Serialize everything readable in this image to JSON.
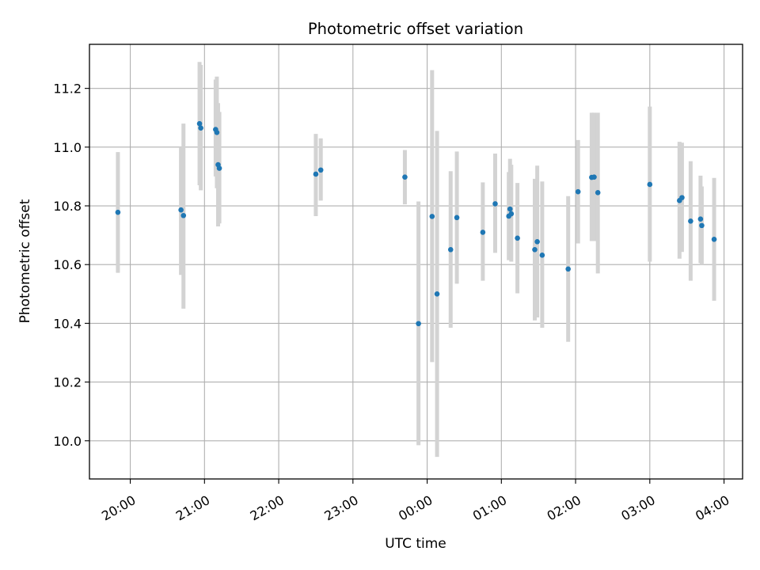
{
  "chart_data": {
    "type": "scatter",
    "title": "Photometric offset variation",
    "xlabel": "UTC time",
    "ylabel": "Photometric offset",
    "x_ticks": [
      "20:00",
      "21:00",
      "22:00",
      "23:00",
      "00:00",
      "01:00",
      "02:00",
      "03:00",
      "04:00"
    ],
    "y_ticks": [
      "10.0",
      "10.2",
      "10.4",
      "10.6",
      "10.8",
      "11.0",
      "11.2"
    ],
    "xlim": [
      "19:27",
      "04:15"
    ],
    "ylim": [
      9.87,
      11.35
    ],
    "grid": true,
    "marker_color": "#1f77b4",
    "errorbar_color": "#d3d3d3",
    "points": [
      {
        "t": "19:50",
        "y": 10.778,
        "lo": 10.572,
        "hi": 10.983
      },
      {
        "t": "20:41",
        "y": 10.786,
        "lo": 10.565,
        "hi": 11.0
      },
      {
        "t": "20:43",
        "y": 10.767,
        "lo": 10.45,
        "hi": 11.08
      },
      {
        "t": "20:56",
        "y": 11.08,
        "lo": 10.87,
        "hi": 11.29
      },
      {
        "t": "20:57",
        "y": 11.065,
        "lo": 10.853,
        "hi": 11.28
      },
      {
        "t": "21:09",
        "y": 11.06,
        "lo": 10.9,
        "hi": 11.23
      },
      {
        "t": "21:10",
        "y": 11.05,
        "lo": 10.86,
        "hi": 11.24
      },
      {
        "t": "21:11",
        "y": 10.94,
        "lo": 10.73,
        "hi": 11.15
      },
      {
        "t": "21:12",
        "y": 10.928,
        "lo": 10.74,
        "hi": 11.12
      },
      {
        "t": "22:30",
        "y": 10.908,
        "lo": 10.765,
        "hi": 11.045
      },
      {
        "t": "22:34",
        "y": 10.922,
        "lo": 10.818,
        "hi": 11.03
      },
      {
        "t": "23:42",
        "y": 10.898,
        "lo": 10.805,
        "hi": 10.99
      },
      {
        "t": "23:53",
        "y": 10.399,
        "lo": 9.985,
        "hi": 10.815
      },
      {
        "t": "00:04",
        "y": 10.764,
        "lo": 10.268,
        "hi": 11.262
      },
      {
        "t": "00:08",
        "y": 10.5,
        "lo": 9.945,
        "hi": 11.055
      },
      {
        "t": "00:19",
        "y": 10.651,
        "lo": 10.385,
        "hi": 10.918
      },
      {
        "t": "00:24",
        "y": 10.76,
        "lo": 10.535,
        "hi": 10.985
      },
      {
        "t": "00:45",
        "y": 10.71,
        "lo": 10.545,
        "hi": 10.88
      },
      {
        "t": "00:55",
        "y": 10.807,
        "lo": 10.64,
        "hi": 10.978
      },
      {
        "t": "01:06",
        "y": 10.765,
        "lo": 10.615,
        "hi": 10.915
      },
      {
        "t": "01:07",
        "y": 10.789,
        "lo": 10.62,
        "hi": 10.96
      },
      {
        "t": "01:08",
        "y": 10.773,
        "lo": 10.61,
        "hi": 10.94
      },
      {
        "t": "01:13",
        "y": 10.69,
        "lo": 10.502,
        "hi": 10.878
      },
      {
        "t": "01:27",
        "y": 10.651,
        "lo": 10.41,
        "hi": 10.892
      },
      {
        "t": "01:29",
        "y": 10.678,
        "lo": 10.42,
        "hi": 10.937
      },
      {
        "t": "01:33",
        "y": 10.632,
        "lo": 10.385,
        "hi": 10.883
      },
      {
        "t": "01:54",
        "y": 10.585,
        "lo": 10.337,
        "hi": 10.833
      },
      {
        "t": "02:02",
        "y": 10.848,
        "lo": 10.672,
        "hi": 11.024
      },
      {
        "t": "02:13",
        "y": 10.897,
        "lo": 10.68,
        "hi": 11.117
      },
      {
        "t": "02:15",
        "y": 10.898,
        "lo": 10.68,
        "hi": 11.117
      },
      {
        "t": "02:18",
        "y": 10.845,
        "lo": 10.57,
        "hi": 11.117
      },
      {
        "t": "03:00",
        "y": 10.873,
        "lo": 10.61,
        "hi": 11.138
      },
      {
        "t": "03:24",
        "y": 10.818,
        "lo": 10.62,
        "hi": 11.018
      },
      {
        "t": "03:26",
        "y": 10.828,
        "lo": 10.643,
        "hi": 11.015
      },
      {
        "t": "03:33",
        "y": 10.748,
        "lo": 10.545,
        "hi": 10.952
      },
      {
        "t": "03:41",
        "y": 10.755,
        "lo": 10.605,
        "hi": 10.903
      },
      {
        "t": "03:42",
        "y": 10.733,
        "lo": 10.6,
        "hi": 10.866
      },
      {
        "t": "03:52",
        "y": 10.686,
        "lo": 10.477,
        "hi": 10.895
      }
    ]
  }
}
